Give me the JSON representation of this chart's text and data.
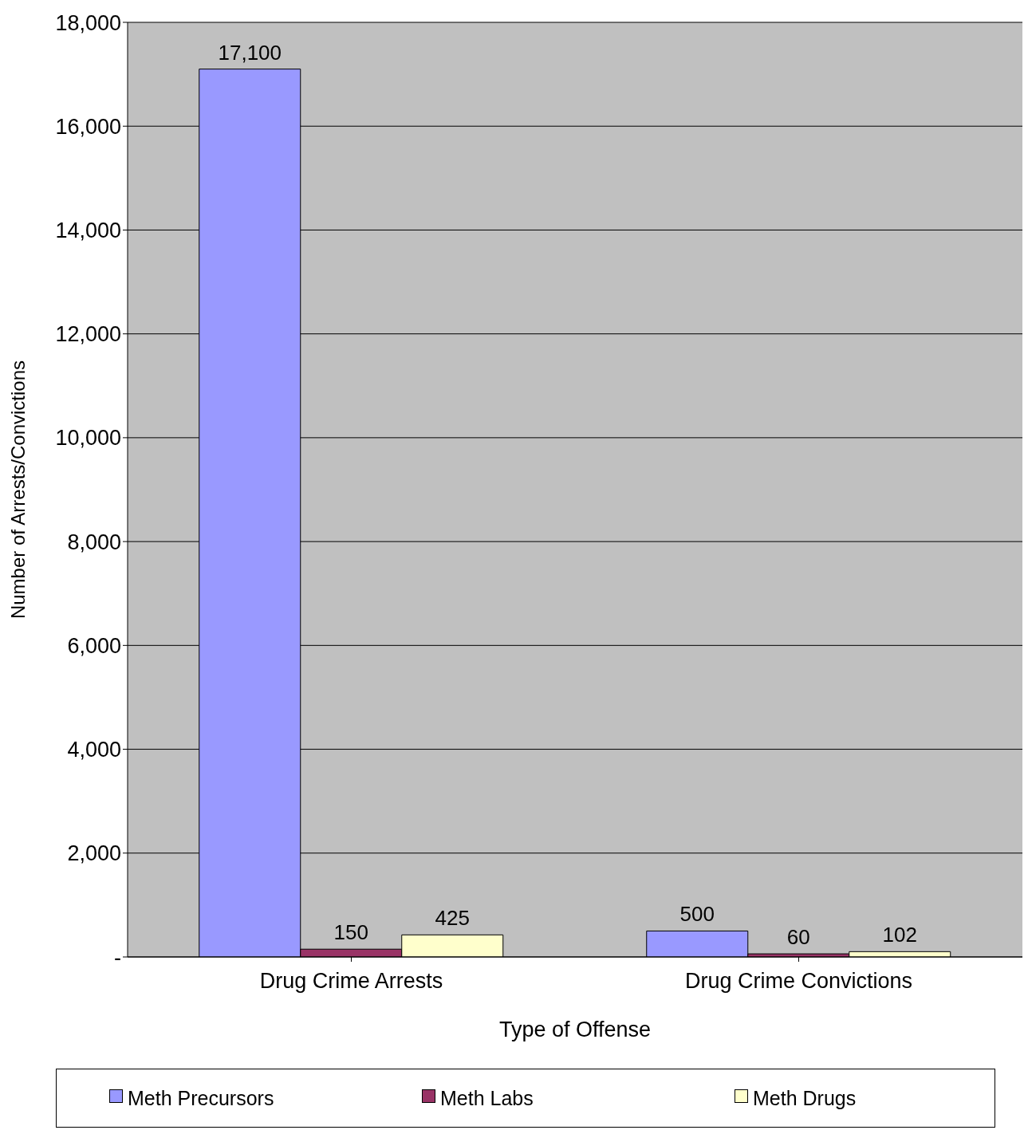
{
  "chart_data": {
    "type": "bar",
    "xlabel": "Type of Offense",
    "ylabel": "Number of Arrests/Convictions",
    "categories": [
      "Drug Crime Arrests",
      "Drug Crime Convictions"
    ],
    "series": [
      {
        "name": "Meth Precursors",
        "color": "#9999ff",
        "values": [
          17100,
          500
        ],
        "value_labels": [
          "17,100",
          "500"
        ]
      },
      {
        "name": "Meth Labs",
        "color": "#993366",
        "values": [
          150,
          60
        ],
        "value_labels": [
          "150",
          "60"
        ]
      },
      {
        "name": "Meth Drugs",
        "color": "#ffffcc",
        "values": [
          425,
          102
        ],
        "value_labels": [
          "425",
          "102"
        ]
      }
    ],
    "ylim": [
      0,
      18000
    ],
    "yticks": [
      {
        "value": 0,
        "label": "-"
      },
      {
        "value": 2000,
        "label": "2,000"
      },
      {
        "value": 4000,
        "label": "4,000"
      },
      {
        "value": 6000,
        "label": "6,000"
      },
      {
        "value": 8000,
        "label": "8,000"
      },
      {
        "value": 10000,
        "label": "10,000"
      },
      {
        "value": 12000,
        "label": "12,000"
      },
      {
        "value": 14000,
        "label": "14,000"
      },
      {
        "value": 16000,
        "label": "16,000"
      },
      {
        "value": 18000,
        "label": "18,000"
      }
    ],
    "grid": "y",
    "legend": "bottom"
  }
}
